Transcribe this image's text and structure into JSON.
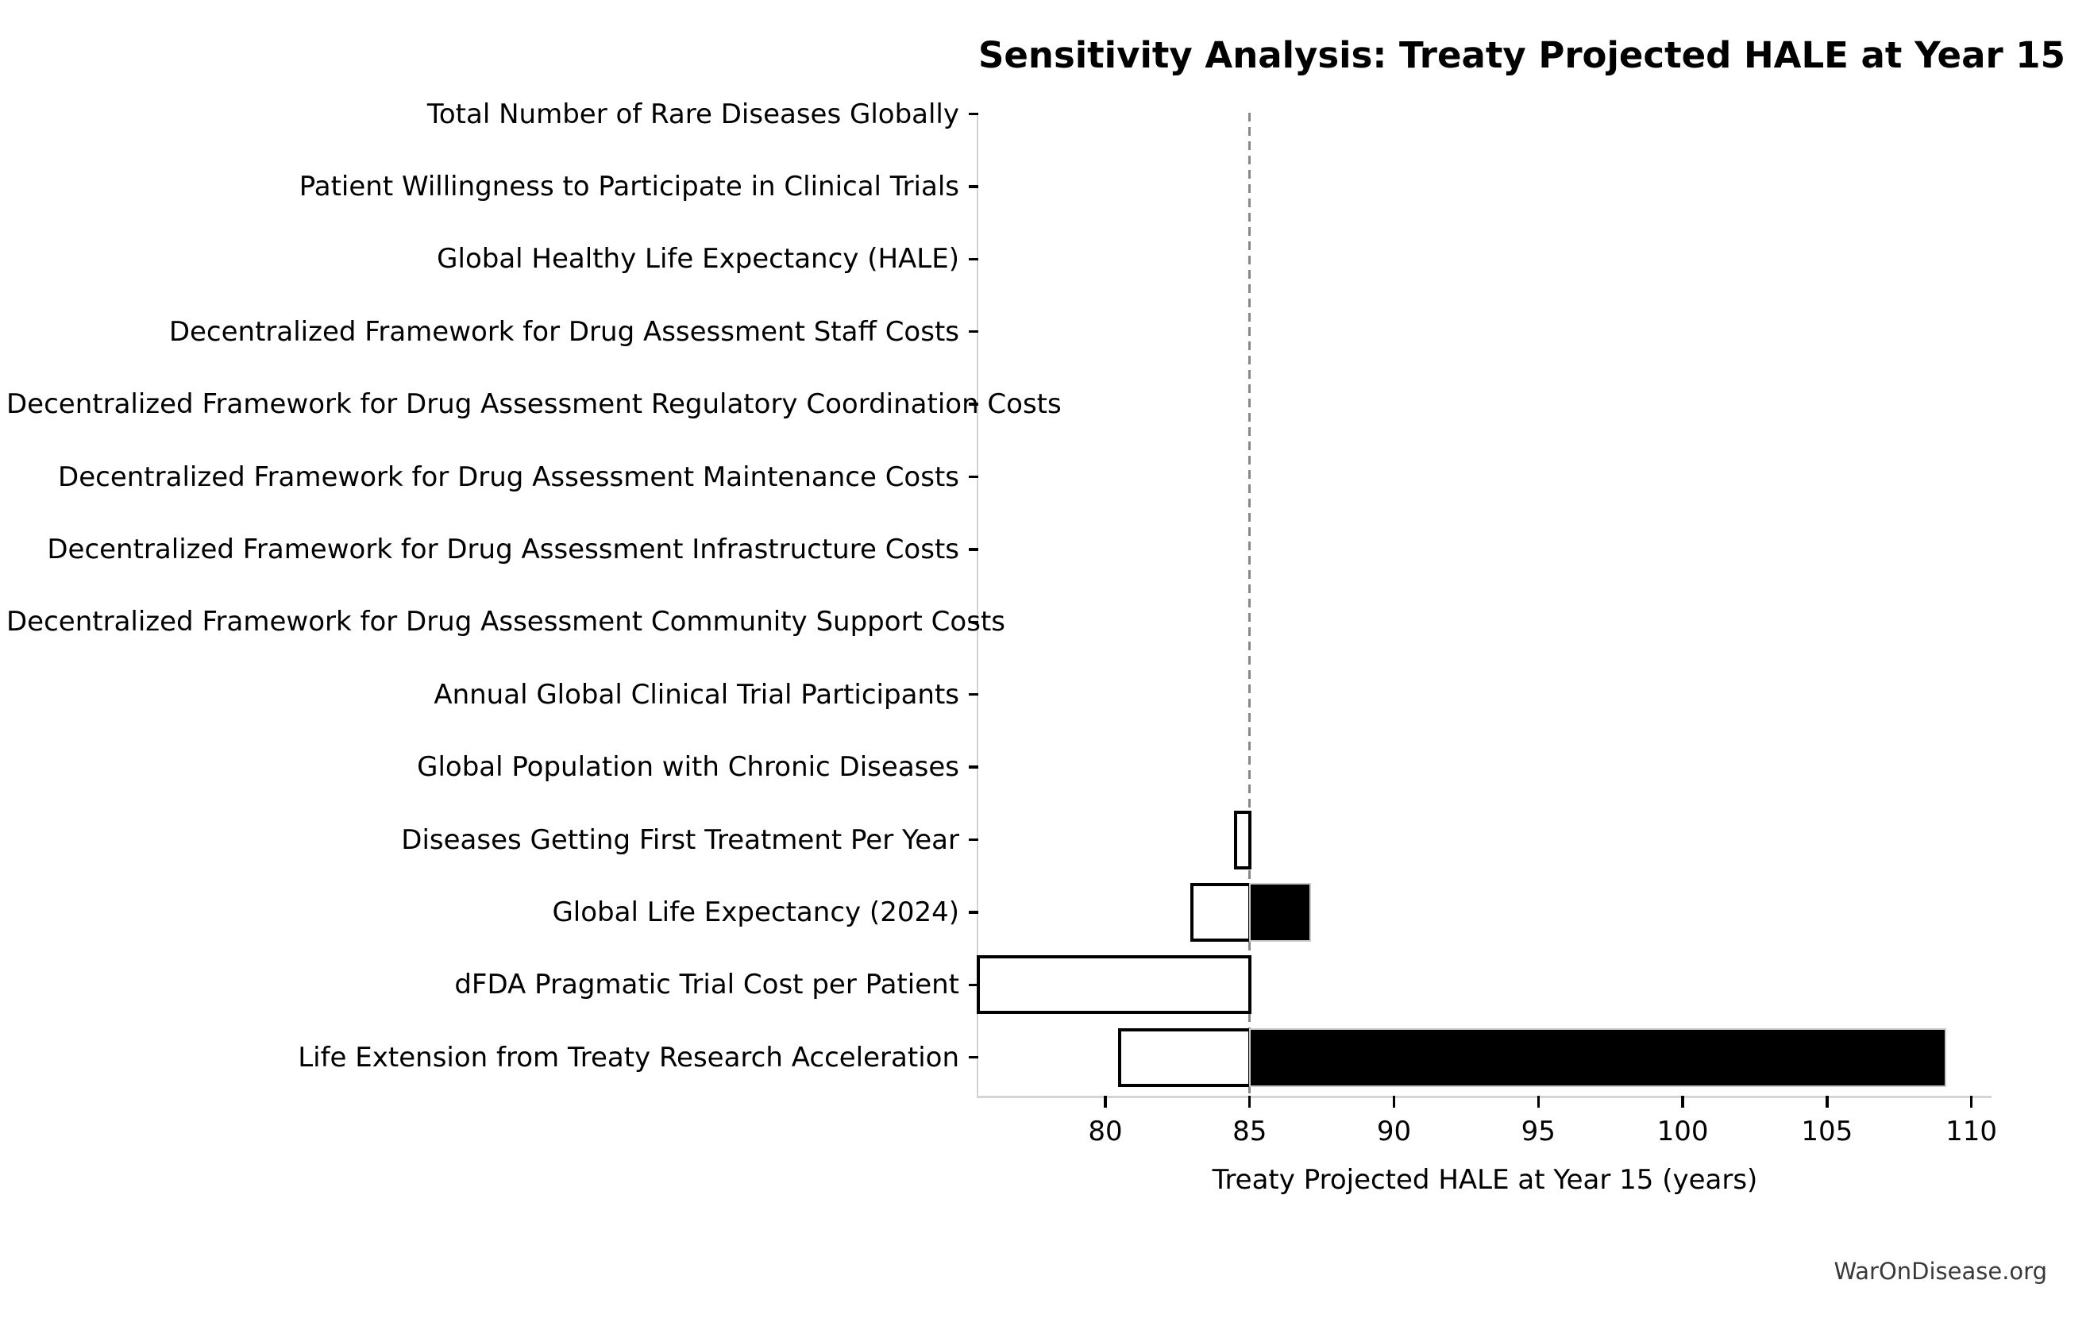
{
  "figure": {
    "watermark": "WarOnDisease.org"
  },
  "chart_data": {
    "type": "bar",
    "subtype": "tornado-sensitivity",
    "orientation": "horizontal",
    "title": "Sensitivity Analysis: Treaty Projected HALE at Year 15",
    "xlabel": "Treaty Projected HALE at Year 15 (years)",
    "base_value": 85,
    "x_ticks": [
      80,
      85,
      90,
      95,
      100,
      105,
      110
    ],
    "x_range": [
      75.6,
      110.7
    ],
    "grid": false,
    "legend": false,
    "baseline_style": "dashed",
    "categories": [
      "Total Number of Rare Diseases Globally",
      "Patient Willingness to Participate in Clinical Trials",
      "Global Healthy Life Expectancy (HALE)",
      "Decentralized Framework for Drug Assessment Staff Costs",
      "Decentralized Framework for Drug Assessment Regulatory Coordination Costs",
      "Decentralized Framework for Drug Assessment Maintenance Costs",
      "Decentralized Framework for Drug Assessment Infrastructure Costs",
      "Decentralized Framework for Drug Assessment Community Support Costs",
      "Annual Global Clinical Trial Participants",
      "Global Population with Chronic Diseases",
      "Diseases Getting First Treatment Per Year",
      "Global Life Expectancy (2024)",
      "dFDA Pragmatic Trial Cost per Patient",
      "Life Extension from Treaty Research Acceleration"
    ],
    "series": [
      {
        "name": "low-side endpoint (white bar, from endpoint to base)",
        "from_base_to": [
          85,
          85,
          85,
          85,
          85,
          85,
          85,
          85,
          85,
          85,
          84.5,
          83.0,
          75.6,
          80.5
        ]
      },
      {
        "name": "high-side endpoint (black bar, from base to endpoint)",
        "from_base_to": [
          85,
          85,
          85,
          85,
          85,
          85,
          85,
          85,
          85,
          85,
          85,
          87.1,
          85,
          109.1
        ]
      }
    ],
    "colors": {
      "low_fill": "#ffffff",
      "low_edge": "#000000",
      "high_fill": "#000000",
      "high_edge": "#c8c8c8",
      "baseline": "#888888",
      "spine": "#d4d4d4",
      "tick": "#000000",
      "text": "#000000",
      "watermark": "#3a3a3a"
    }
  }
}
